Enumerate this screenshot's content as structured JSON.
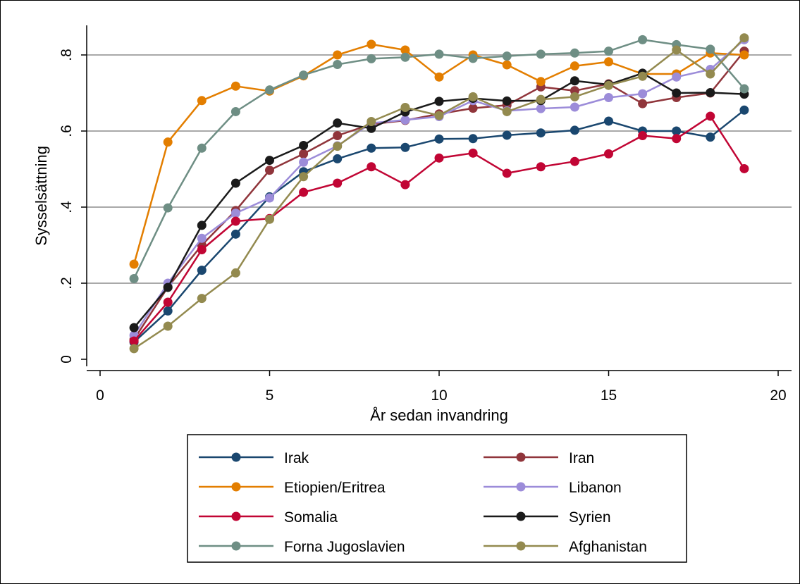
{
  "chart_data": {
    "type": "line",
    "title": "",
    "xlabel": "År sedan invandring",
    "ylabel": "Sysselsättning",
    "xlim": [
      0,
      20
    ],
    "ylim": [
      0,
      0.85
    ],
    "x_ticks": [
      0,
      5,
      10,
      15,
      20
    ],
    "x_tick_labels": [
      "0",
      "5",
      "10",
      "15",
      "20"
    ],
    "y_ticks": [
      0,
      0.2,
      0.4,
      0.6,
      0.8
    ],
    "y_tick_labels": [
      "0",
      ".2",
      ".4",
      ".6",
      ".8"
    ],
    "grid": "horizontal",
    "legend_position": "bottom",
    "x": [
      1,
      2,
      3,
      4,
      5,
      6,
      7,
      8,
      9,
      10,
      11,
      12,
      13,
      14,
      15,
      16,
      17,
      18,
      19
    ],
    "series": [
      {
        "name": "Irak",
        "color": "#1a476f",
        "values": [
          0.045,
          0.127,
          0.234,
          0.329,
          0.427,
          0.493,
          0.527,
          0.555,
          0.557,
          0.579,
          0.58,
          0.589,
          0.595,
          0.602,
          0.626,
          0.6,
          0.6,
          0.584,
          0.655
        ]
      },
      {
        "name": "Iran",
        "color": "#90353b",
        "values": [
          0.052,
          0.19,
          0.3,
          0.391,
          0.497,
          0.54,
          0.588,
          0.618,
          0.628,
          0.645,
          0.66,
          0.668,
          0.716,
          0.706,
          0.724,
          0.672,
          0.688,
          0.7,
          0.81
        ]
      },
      {
        "name": "Etiopien/Eritrea",
        "color": "#e37e00",
        "values": [
          0.25,
          0.571,
          0.68,
          0.718,
          0.705,
          0.745,
          0.8,
          0.828,
          0.813,
          0.742,
          0.8,
          0.774,
          0.73,
          0.771,
          0.782,
          0.75,
          0.75,
          0.805,
          0.8
        ]
      },
      {
        "name": "Libanon",
        "color": "#9c8cd9",
        "values": [
          0.063,
          0.2,
          0.318,
          0.384,
          0.424,
          0.518,
          0.561,
          0.621,
          0.629,
          0.638,
          0.68,
          0.653,
          0.659,
          0.663,
          0.688,
          0.698,
          0.742,
          0.762,
          0.84
        ]
      },
      {
        "name": "Somalia",
        "color": "#c10534",
        "values": [
          0.048,
          0.15,
          0.288,
          0.363,
          0.37,
          0.439,
          0.463,
          0.506,
          0.459,
          0.529,
          0.542,
          0.489,
          0.506,
          0.52,
          0.54,
          0.588,
          0.58,
          0.639,
          0.501
        ]
      },
      {
        "name": "Syrien",
        "color": "#1a1a1a",
        "values": [
          0.083,
          0.189,
          0.352,
          0.463,
          0.523,
          0.562,
          0.621,
          0.607,
          0.65,
          0.678,
          0.686,
          0.679,
          0.68,
          0.732,
          0.722,
          0.752,
          0.7,
          0.701,
          0.697
        ]
      },
      {
        "name": "Forna Jugoslavien",
        "color": "#6e8e84",
        "values": [
          0.212,
          0.398,
          0.555,
          0.651,
          0.708,
          0.747,
          0.775,
          0.79,
          0.794,
          0.802,
          0.791,
          0.797,
          0.802,
          0.805,
          0.81,
          0.84,
          0.827,
          0.815,
          0.711
        ]
      },
      {
        "name": "Afghanistan",
        "color": "#938a4f",
        "values": [
          0.028,
          0.087,
          0.16,
          0.227,
          0.368,
          0.48,
          0.56,
          0.625,
          0.662,
          0.641,
          0.69,
          0.651,
          0.683,
          0.69,
          0.72,
          0.744,
          0.813,
          0.75,
          0.845
        ]
      }
    ]
  }
}
